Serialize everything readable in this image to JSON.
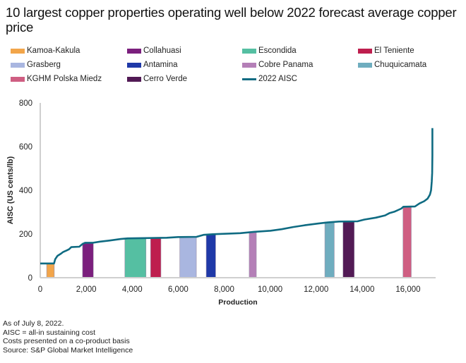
{
  "chart_data": {
    "type": "bar",
    "title": "10 largest copper properties operating well below 2022 forecast average copper price",
    "xlabel": "Production",
    "ylabel": "AISC (US cents/lb)",
    "xlim": [
      0,
      17200
    ],
    "ylim": [
      0,
      800
    ],
    "xticks": [
      0,
      2000,
      4000,
      6000,
      8000,
      10000,
      12000,
      14000,
      16000
    ],
    "xtick_labels": [
      "0",
      "2,000",
      "4,000",
      "6,000",
      "8,000",
      "10,000",
      "12,000",
      "14,000",
      "16,000"
    ],
    "yticks": [
      0,
      200,
      400,
      600,
      800
    ],
    "ytick_labels": [
      "0",
      "200",
      "400",
      "600",
      "800"
    ],
    "grid": false,
    "legend_position": "top",
    "series": [
      {
        "name": "Kamoa-Kakula",
        "color": "#F2A54A",
        "x_start": 280,
        "x_end": 610,
        "value": 65
      },
      {
        "name": "Collahuasi",
        "color": "#7B1F7D",
        "x_start": 1840,
        "x_end": 2310,
        "value": 158
      },
      {
        "name": "Escondida",
        "color": "#55BFA2",
        "x_start": 3680,
        "x_end": 4600,
        "value": 180
      },
      {
        "name": "El Teniente",
        "color": "#BE1E4E",
        "x_start": 4800,
        "x_end": 5250,
        "value": 180
      },
      {
        "name": "Grasberg",
        "color": "#A9B6E0",
        "x_start": 6070,
        "x_end": 6790,
        "value": 185
      },
      {
        "name": "Antamina",
        "color": "#1F39A8",
        "x_start": 7220,
        "x_end": 7630,
        "value": 198
      },
      {
        "name": "Cobre Panama",
        "color": "#B47FB7",
        "x_start": 9090,
        "x_end": 9400,
        "value": 209
      },
      {
        "name": "Chuquicamata",
        "color": "#6FADBF",
        "x_start": 12380,
        "x_end": 12790,
        "value": 255
      },
      {
        "name": "KGHM Polska Miedz",
        "color": "#CF5E82",
        "x_start": 15780,
        "x_end": 16140,
        "value": 325
      },
      {
        "name": "Cerro Verde",
        "color": "#521A55",
        "x_start": 13170,
        "x_end": 13660,
        "value": 257
      }
    ],
    "curve": {
      "name": "2022 AISC",
      "color": "#0F6B82",
      "points": [
        [
          0,
          65
        ],
        [
          600,
          65
        ],
        [
          650,
          85
        ],
        [
          750,
          100
        ],
        [
          900,
          110
        ],
        [
          1000,
          118
        ],
        [
          1150,
          125
        ],
        [
          1250,
          130
        ],
        [
          1350,
          140
        ],
        [
          1700,
          142
        ],
        [
          1850,
          155
        ],
        [
          1950,
          160
        ],
        [
          2300,
          160
        ],
        [
          2600,
          165
        ],
        [
          3000,
          170
        ],
        [
          3500,
          177
        ],
        [
          3800,
          180
        ],
        [
          5500,
          183
        ],
        [
          6000,
          186
        ],
        [
          6800,
          187
        ],
        [
          7100,
          196
        ],
        [
          7500,
          199
        ],
        [
          8700,
          204
        ],
        [
          9300,
          210
        ],
        [
          10000,
          215
        ],
        [
          10500,
          222
        ],
        [
          11000,
          232
        ],
        [
          11500,
          240
        ],
        [
          12100,
          248
        ],
        [
          12500,
          253
        ],
        [
          13000,
          257
        ],
        [
          13800,
          258
        ],
        [
          14100,
          266
        ],
        [
          14600,
          275
        ],
        [
          15000,
          285
        ],
        [
          15200,
          296
        ],
        [
          15400,
          302
        ],
        [
          15700,
          316
        ],
        [
          15800,
          325
        ],
        [
          16300,
          326
        ],
        [
          16500,
          340
        ],
        [
          16700,
          350
        ],
        [
          16850,
          362
        ],
        [
          16950,
          380
        ],
        [
          17000,
          400
        ],
        [
          17030,
          440
        ],
        [
          17050,
          480
        ],
        [
          17060,
          560
        ],
        [
          17060,
          685
        ]
      ]
    }
  },
  "legend": [
    {
      "label": "Kamoa-Kakula",
      "color": "#F2A54A",
      "kind": "swatch"
    },
    {
      "label": "Collahuasi",
      "color": "#7B1F7D",
      "kind": "swatch"
    },
    {
      "label": "Escondida",
      "color": "#55BFA2",
      "kind": "swatch"
    },
    {
      "label": "El Teniente",
      "color": "#BE1E4E",
      "kind": "swatch"
    },
    {
      "label": "Grasberg",
      "color": "#A9B6E0",
      "kind": "swatch"
    },
    {
      "label": "Antamina",
      "color": "#1F39A8",
      "kind": "swatch"
    },
    {
      "label": "Cobre Panama",
      "color": "#B47FB7",
      "kind": "swatch"
    },
    {
      "label": "Chuquicamata",
      "color": "#6FADBF",
      "kind": "swatch"
    },
    {
      "label": "KGHM Polska Miedz",
      "color": "#CF5E82",
      "kind": "swatch"
    },
    {
      "label": "Cerro Verde",
      "color": "#521A55",
      "kind": "swatch"
    },
    {
      "label": "2022 AISC",
      "color": "#0F6B82",
      "kind": "line"
    }
  ],
  "footer": {
    "note1": "As of July 8, 2022.",
    "note2": "AISC = all-in sustaining cost",
    "note3": "Costs presented on a co-product basis",
    "source": "Source: S&P Global Market Intelligence"
  }
}
